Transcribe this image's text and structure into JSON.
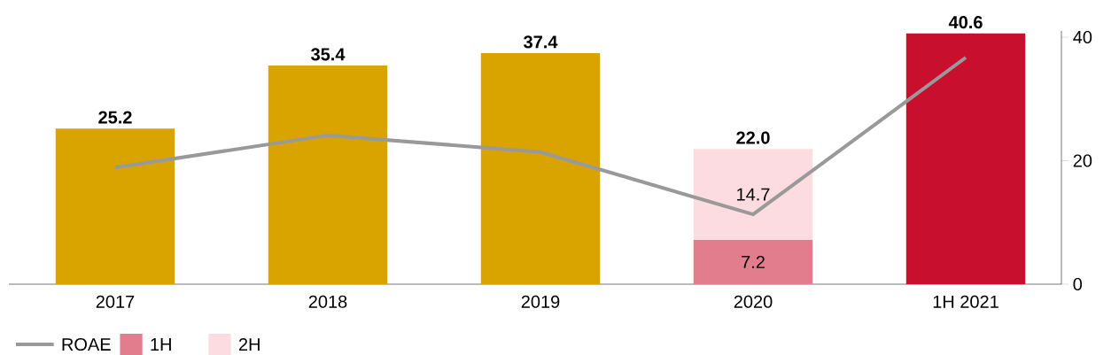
{
  "chart_data": {
    "type": "bar",
    "categories": [
      "2017",
      "2018",
      "2019",
      "2020",
      "1H 2021"
    ],
    "series": [
      {
        "name": "ROAE",
        "type": "line",
        "color": "#999999",
        "values": [
          18.9,
          24.1,
          21.4,
          11.3,
          36.7
        ]
      },
      {
        "color": "#d9a400",
        "values": [
          25.2,
          35.4,
          37.4,
          null,
          null
        ]
      },
      {
        "name": "1H",
        "color": "#e27d8d",
        "values": [
          null,
          null,
          null,
          7.2,
          null
        ],
        "value_labels": [
          null,
          null,
          null,
          "7.2",
          null
        ]
      },
      {
        "name": "2H",
        "color": "#fcdce0",
        "values": [
          null,
          null,
          null,
          14.7,
          null
        ],
        "value_labels": [
          null,
          null,
          null,
          "14.7",
          null
        ]
      },
      {
        "color": "#c8102e",
        "values": [
          null,
          null,
          null,
          null,
          40.6
        ]
      }
    ],
    "stacked": true,
    "totals": [
      "25.2",
      "35.4",
      "37.4",
      "22.0",
      "40.6"
    ],
    "ylim": [
      0,
      41
    ],
    "yticks": [
      0,
      20,
      40
    ],
    "legend": "bottom left"
  }
}
